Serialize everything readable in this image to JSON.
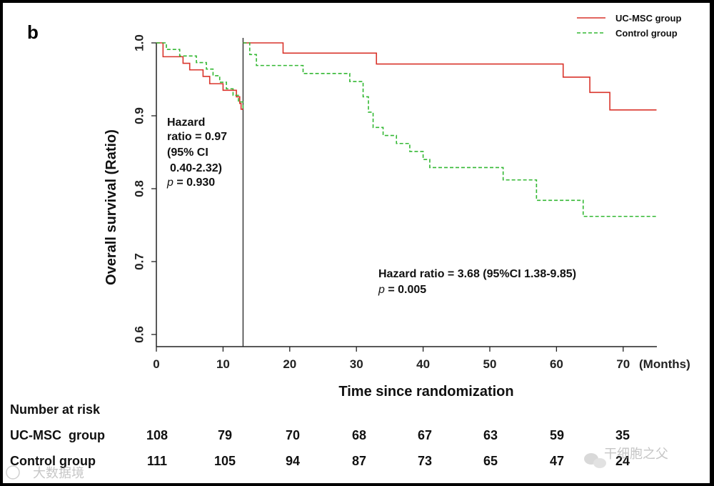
{
  "panel_label": "b",
  "chart_data": {
    "type": "line",
    "subtype": "kaplan-meier",
    "title": "",
    "xlabel": "Time since randomization",
    "ylabel": "Overall survival (Ratio)",
    "xlim": [
      0,
      75
    ],
    "ylim": [
      0.58,
      1.0
    ],
    "xticks": [
      0,
      10,
      20,
      30,
      40,
      50,
      60,
      70
    ],
    "yticks": [
      0.6,
      0.7,
      0.8,
      0.9,
      1.0
    ],
    "xtick_labels": [
      "0",
      "10",
      "20",
      "30",
      "40",
      "50",
      "60",
      "70"
    ],
    "ytick_labels": [
      "0.6",
      "0.7",
      "0.8",
      "0.9",
      "1.0"
    ],
    "x_unit_label": "(Months)",
    "landmark_x": 13,
    "legend_position": "top-right",
    "series": [
      {
        "name": "UC-MSC group",
        "color": "#d9342b",
        "dash": "solid",
        "early_steps": [
          [
            0,
            1.0
          ],
          [
            1,
            0.981
          ],
          [
            4,
            0.972
          ],
          [
            5,
            0.963
          ],
          [
            7,
            0.954
          ],
          [
            8,
            0.944
          ],
          [
            10,
            0.935
          ],
          [
            12,
            0.926
          ],
          [
            12.5,
            0.917
          ],
          [
            12.7,
            0.909
          ],
          [
            13,
            0.909
          ]
        ],
        "late_steps": [
          [
            13,
            1.0
          ],
          [
            19,
            0.986
          ],
          [
            33,
            0.971
          ],
          [
            61,
            0.953
          ],
          [
            65,
            0.932
          ],
          [
            68,
            0.908
          ],
          [
            75,
            0.908
          ]
        ]
      },
      {
        "name": "Control group",
        "color": "#33b833",
        "dash": "dashed",
        "early_steps": [
          [
            0,
            1.0
          ],
          [
            1.5,
            0.991
          ],
          [
            3.5,
            0.982
          ],
          [
            6,
            0.973
          ],
          [
            7.5,
            0.964
          ],
          [
            8.5,
            0.955
          ],
          [
            9.5,
            0.946
          ],
          [
            10.5,
            0.937
          ],
          [
            11.5,
            0.928
          ],
          [
            12.3,
            0.919
          ],
          [
            13,
            0.91
          ]
        ],
        "late_steps": [
          [
            13,
            1.0
          ],
          [
            14,
            0.984
          ],
          [
            15,
            0.969
          ],
          [
            22,
            0.958
          ],
          [
            29,
            0.947
          ],
          [
            31,
            0.926
          ],
          [
            31.8,
            0.905
          ],
          [
            32.5,
            0.884
          ],
          [
            34,
            0.873
          ],
          [
            36,
            0.862
          ],
          [
            38,
            0.851
          ],
          [
            40,
            0.84
          ],
          [
            41,
            0.829
          ],
          [
            52,
            0.812
          ],
          [
            57,
            0.784
          ],
          [
            64,
            0.762
          ],
          [
            75,
            0.762
          ]
        ]
      }
    ],
    "annotations": {
      "early": [
        "Hazard",
        "ratio = 0.97",
        "(95% CI",
        "0.40-2.32)"
      ],
      "early_p_label": "p",
      "early_p_value": " = 0.930",
      "late": "Hazard ratio = 3.68 (95%CI 1.38-9.85)",
      "late_p_label": "p",
      "late_p_value": " = 0.005"
    },
    "risk_table": {
      "title": "Number at risk",
      "rows": [
        {
          "label": "UC-MSC  group",
          "values": [
            "108",
            "79",
            "70",
            "68",
            "67",
            "63",
            "59",
            "35"
          ]
        },
        {
          "label": "Control group",
          "values": [
            "111",
            "105",
            "94",
            "87",
            "73",
            "65",
            "47",
            "24"
          ]
        }
      ]
    }
  },
  "watermarks": {
    "left": "大数据境",
    "right": "干细胞之父"
  }
}
